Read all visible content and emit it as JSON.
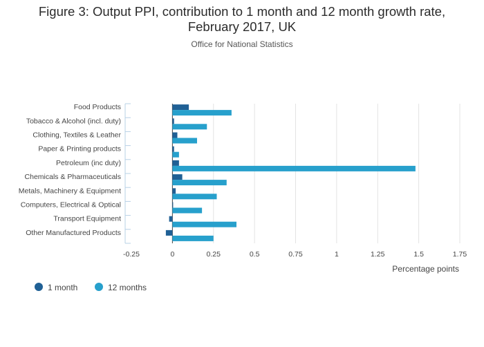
{
  "chart_data": {
    "type": "bar",
    "orientation": "horizontal",
    "title_line1": "Figure 3: Output PPI, contribution to 1 month and 12 month growth rate,",
    "title_line2": "February 2017, UK",
    "subtitle": "Office for National Statistics",
    "xlabel": "Percentage points",
    "ylabel": "",
    "xlim": [
      -0.25,
      1.75
    ],
    "xticks": [
      -0.25,
      0,
      0.25,
      0.5,
      0.75,
      1,
      1.25,
      1.5,
      1.75
    ],
    "xtick_labels": [
      "-0.25",
      "0",
      "0.25",
      "0.5",
      "0.75",
      "1",
      "1.25",
      "1.5",
      "1.75"
    ],
    "grid": true,
    "legend_position": "bottom-left",
    "categories": [
      "Food Products",
      "Tobacco & Alcohol (incl. duty)",
      "Clothing, Textiles & Leather",
      "Paper & Printing products",
      "Petroleum (inc duty)",
      "Chemicals & Pharmaceuticals",
      "Metals, Machinery & Equipment",
      "Computers, Electrical & Optical",
      "Transport Equipment",
      "Other Manufactured Products"
    ],
    "series": [
      {
        "name": "1 month",
        "color": "#206095",
        "values": [
          0.1,
          0.01,
          0.03,
          0.01,
          0.04,
          0.06,
          0.02,
          0.003,
          -0.02,
          -0.04
        ]
      },
      {
        "name": "12 months",
        "color": "#27a0cc",
        "values": [
          0.36,
          0.21,
          0.15,
          0.04,
          1.48,
          0.33,
          0.27,
          0.18,
          0.39,
          0.25
        ]
      }
    ]
  }
}
